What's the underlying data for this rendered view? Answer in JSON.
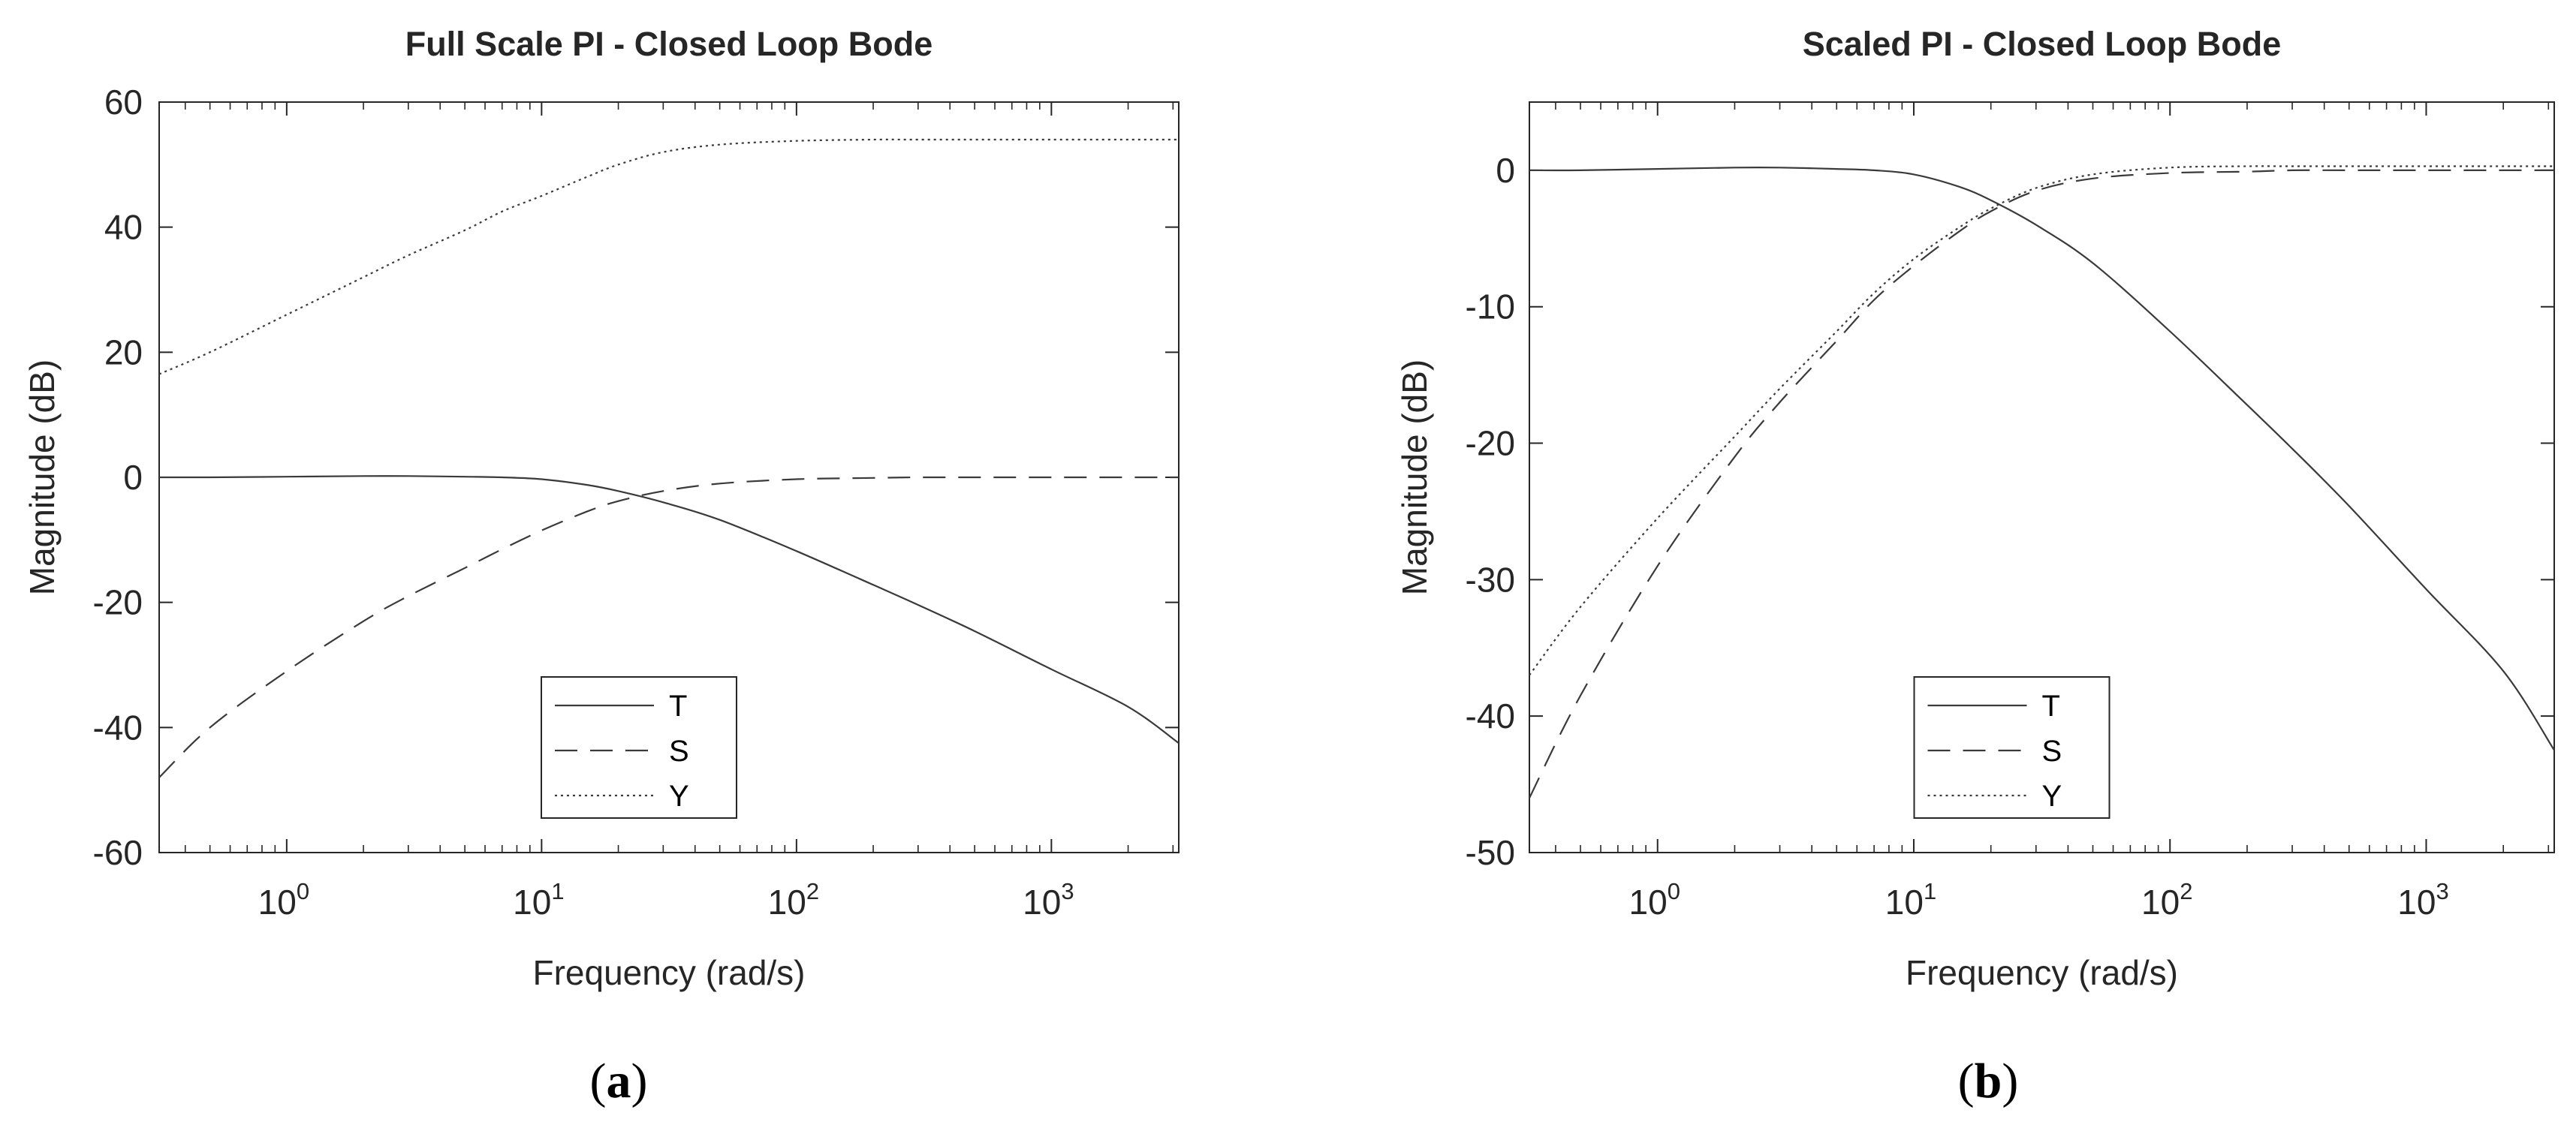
{
  "chart_data": [
    {
      "type": "line",
      "title": "Full Scale PI - Closed Loop Bode",
      "xlabel": "Frequency (rad/s)",
      "ylabel": "Magnitude (dB)",
      "xscale": "log",
      "xlim": [
        0.316,
        3160
      ],
      "ylim": [
        -60,
        60
      ],
      "yticks": [
        60,
        40,
        20,
        0,
        -20,
        -40,
        -60
      ],
      "xticks": [
        {
          "base": "10",
          "exp": "0",
          "value": 1
        },
        {
          "base": "10",
          "exp": "1",
          "value": 10
        },
        {
          "base": "10",
          "exp": "2",
          "value": 100
        },
        {
          "base": "10",
          "exp": "3",
          "value": 1000
        }
      ],
      "grid": false,
      "legend_position": "bottom-center",
      "subfigure_label": {
        "open": "(",
        "letter": "a",
        "close": ")"
      },
      "series": [
        {
          "name": "T",
          "style": "solid",
          "x": [
            0.316,
            0.5,
            1,
            2,
            3,
            5,
            7,
            10,
            15,
            20,
            30,
            50,
            100,
            200,
            300,
            500,
            1000,
            2000,
            3160
          ],
          "y": [
            0,
            0,
            0.1,
            0.2,
            0.2,
            0.1,
            0,
            -0.3,
            -1.2,
            -2.2,
            -4,
            -6.8,
            -11.8,
            -17.2,
            -20.4,
            -24.6,
            -30.7,
            -36.7,
            -42.5
          ]
        },
        {
          "name": "S",
          "style": "dashed",
          "x": [
            0.316,
            0.5,
            1,
            2,
            3,
            5,
            7,
            10,
            15,
            20,
            30,
            50,
            100,
            200,
            300,
            500,
            1000,
            3160
          ],
          "y": [
            -48,
            -40,
            -31,
            -23,
            -19,
            -14.5,
            -11.5,
            -8.5,
            -5.5,
            -3.8,
            -2.2,
            -1,
            -0.3,
            -0.1,
            0,
            0,
            0,
            0
          ]
        },
        {
          "name": "Y",
          "style": "dotted",
          "x": [
            0.316,
            0.5,
            1,
            2,
            3,
            5,
            7,
            10,
            15,
            20,
            30,
            50,
            100,
            200,
            300,
            1000,
            3160
          ],
          "y": [
            16.5,
            20,
            26,
            32,
            35.5,
            39.5,
            42.5,
            45,
            48,
            50,
            52,
            53.2,
            53.8,
            54,
            54,
            54,
            54
          ]
        }
      ]
    },
    {
      "type": "line",
      "title": "Scaled PI - Closed Loop Bode",
      "xlabel": "Frequency (rad/s)",
      "ylabel": "Magnitude (dB)",
      "xscale": "log",
      "xlim": [
        0.316,
        3160
      ],
      "ylim": [
        -50,
        5
      ],
      "yticks": [
        0,
        -10,
        -20,
        -30,
        -40,
        -50
      ],
      "xticks": [
        {
          "base": "10",
          "exp": "0",
          "value": 1
        },
        {
          "base": "10",
          "exp": "1",
          "value": 10
        },
        {
          "base": "10",
          "exp": "2",
          "value": 100
        },
        {
          "base": "10",
          "exp": "3",
          "value": 1000
        }
      ],
      "grid": false,
      "legend_position": "bottom-center",
      "subfigure_label": {
        "open": "(",
        "letter": "b",
        "close": ")"
      },
      "series": [
        {
          "name": "T",
          "style": "solid",
          "x": [
            0.316,
            0.5,
            1,
            2,
            3,
            5,
            7,
            10,
            15,
            20,
            30,
            50,
            100,
            200,
            300,
            500,
            1000,
            2000,
            3160
          ],
          "y": [
            0,
            0,
            0.1,
            0.2,
            0.2,
            0.1,
            0,
            -0.3,
            -1.2,
            -2.2,
            -4,
            -6.8,
            -11.8,
            -17.2,
            -20.4,
            -24.6,
            -30.7,
            -36.7,
            -42.5
          ]
        },
        {
          "name": "S",
          "style": "dashed",
          "x": [
            0.316,
            0.5,
            1,
            2,
            3,
            5,
            7,
            10,
            15,
            20,
            30,
            50,
            100,
            200,
            300,
            500,
            1000,
            3160
          ],
          "y": [
            -46,
            -38.5,
            -29,
            -21,
            -17,
            -12.5,
            -9.5,
            -7,
            -4.5,
            -3,
            -1.5,
            -0.6,
            -0.2,
            -0.1,
            0,
            0,
            0,
            0
          ]
        },
        {
          "name": "Y",
          "style": "dotted",
          "x": [
            0.316,
            0.5,
            1,
            2,
            3,
            5,
            7,
            10,
            15,
            20,
            30,
            50,
            100,
            200,
            300,
            1000,
            3160
          ],
          "y": [
            -37,
            -32,
            -25.5,
            -19.5,
            -16,
            -11.8,
            -9,
            -6.5,
            -4.2,
            -2.8,
            -1.3,
            -0.3,
            0.2,
            0.3,
            0.3,
            0.3,
            0.3
          ]
        }
      ]
    }
  ]
}
